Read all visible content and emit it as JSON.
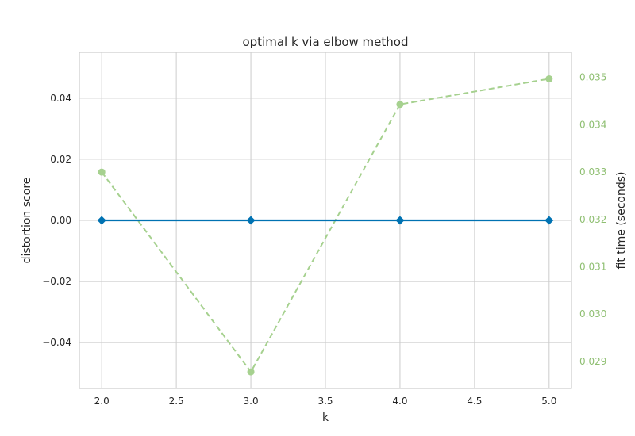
{
  "chart_data": {
    "type": "line",
    "title": "optimal k via elbow method",
    "xlabel": "k",
    "ylabel": "distortion score",
    "y2label": "fit time (seconds)",
    "x": [
      2.0,
      3.0,
      4.0,
      5.0
    ],
    "xlim": [
      1.85,
      5.15
    ],
    "ylim": [
      -0.055,
      0.055
    ],
    "y2lim": [
      0.02843,
      0.03553
    ],
    "grid": true,
    "xticks": [
      "2.0",
      "2.5",
      "3.0",
      "3.5",
      "4.0",
      "4.5",
      "5.0"
    ],
    "yticks": [
      "0.04",
      "0.02",
      "0.00",
      "−0.02",
      "−0.04"
    ],
    "y2ticks": [
      "0.035",
      "0.034",
      "0.033",
      "0.032",
      "0.031",
      "0.030",
      "0.029"
    ],
    "series": [
      {
        "values": [
          0.0,
          0.0,
          0.0,
          0.0
        ],
        "axis": "left",
        "color": "#0072b2",
        "marker": "diamond",
        "style": "solid"
      },
      {
        "values": [
          0.033,
          0.02878,
          0.03443,
          0.03497
        ],
        "axis": "right",
        "color": "#a6d18f",
        "marker": "circle",
        "style": "dashed"
      }
    ],
    "colors": {
      "right_axis_text": "#8fbf72"
    }
  }
}
